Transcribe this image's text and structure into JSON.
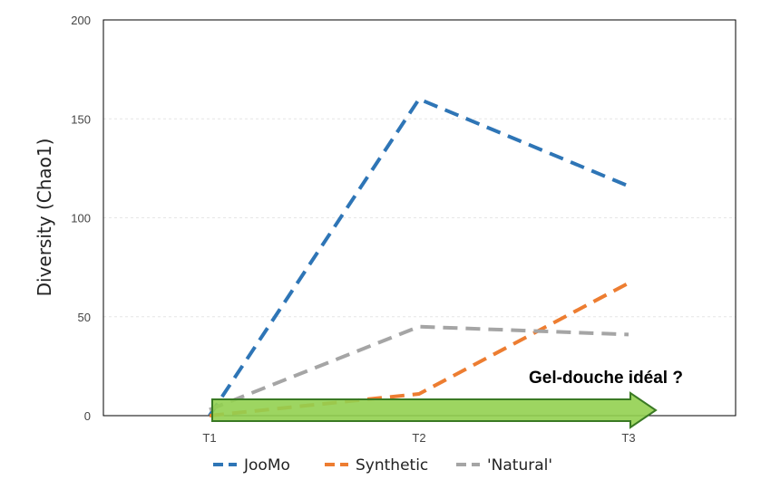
{
  "chart_data": {
    "type": "line",
    "categories": [
      "T1",
      "T2",
      "T3"
    ],
    "ylabel": "Diversity (Chao1)",
    "ylim": [
      0,
      200
    ],
    "yticks": [
      0,
      50,
      100,
      150,
      200
    ],
    "grid": true,
    "legend_position": "bottom",
    "series": [
      {
        "name": "JooMo",
        "values": [
          0,
          160,
          116
        ],
        "color": "#2E75B6",
        "style": "dashed"
      },
      {
        "name": "Synthetic",
        "values": [
          0,
          11,
          67
        ],
        "color": "#ED7D31",
        "style": "dashed"
      },
      {
        "name": "'Natural'",
        "values": [
          3,
          45,
          41
        ],
        "color": "#A5A5A5",
        "style": "dashed"
      }
    ],
    "annotation": {
      "text": "Gel-douche idéal ?",
      "arrow_fill": "#92D050",
      "arrow_stroke": "#3A7A24",
      "spans": [
        "T1",
        "T3"
      ]
    }
  }
}
